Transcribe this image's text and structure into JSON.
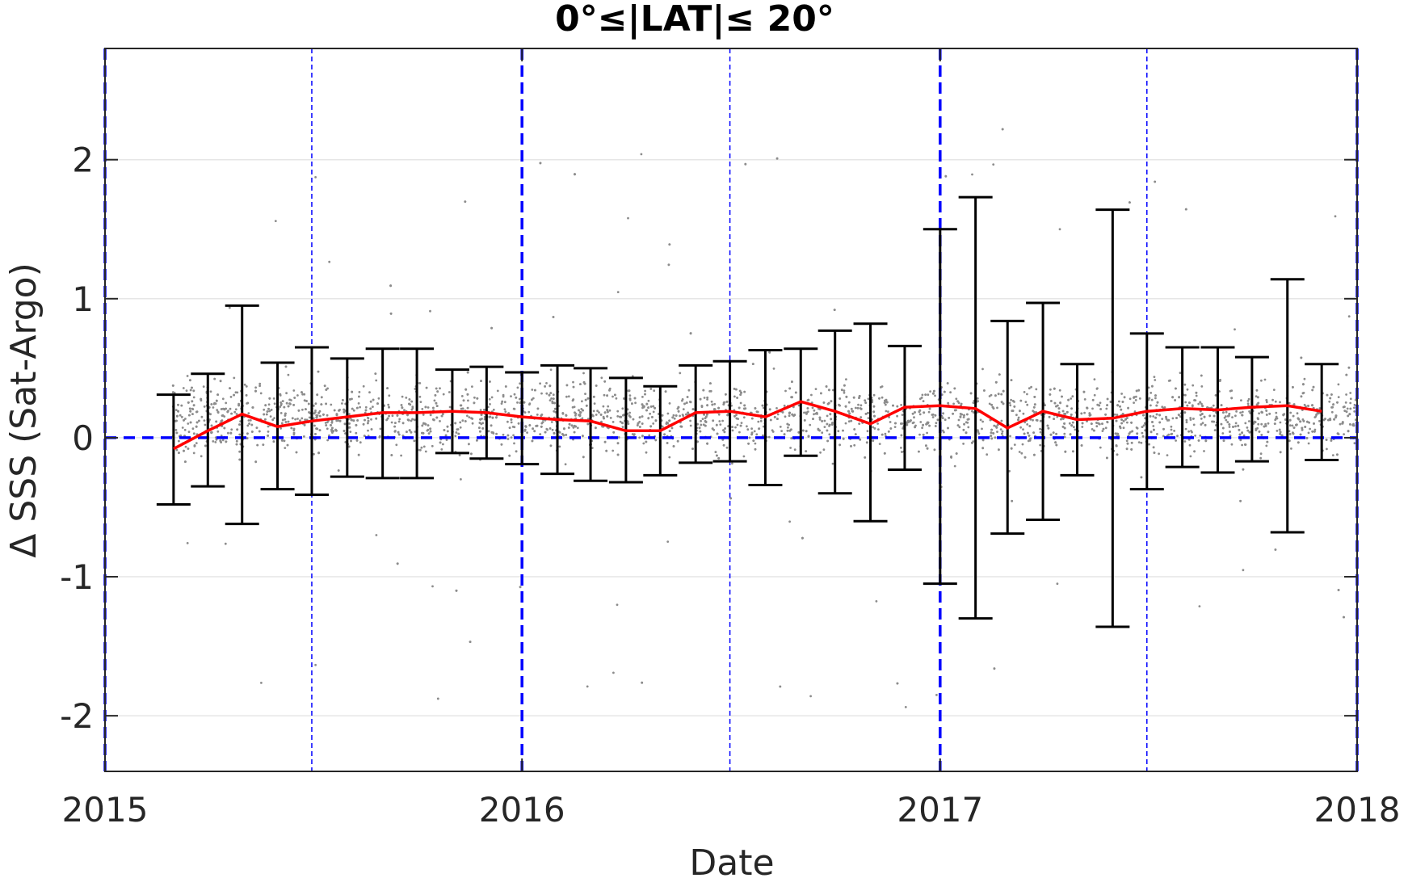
{
  "chart_data": {
    "type": "scatter",
    "title": "0°≤|LAT|≤ 20°",
    "xlabel": "Date",
    "ylabel": "Δ SSS (Sat-Argo)",
    "xlim": [
      "2015-01-01",
      "2018-01-01"
    ],
    "ylim": [
      -2.4,
      2.8
    ],
    "grid": true,
    "x_tick_labels": [
      "2015",
      "2016",
      "2017",
      "2018"
    ],
    "y_ticks": [
      -2,
      -1,
      0,
      1,
      2
    ],
    "y_tick_labels": [
      "-2",
      "-1",
      "0",
      "1",
      "2"
    ],
    "reference_lines": {
      "year_boundaries": [
        "2015-01-01",
        "2016-01-01",
        "2017-01-01",
        "2018-01-01"
      ],
      "mid_year": [
        "2015-07-01",
        "2016-07-01",
        "2017-07-01"
      ],
      "zero_line": 0,
      "color": "#0000ff"
    },
    "colors": {
      "points": "#8c8c8c",
      "mean": "#ff0000",
      "errorbars": "#000000",
      "reference": "#0000ff"
    },
    "scatter_note_value": null,
    "series": [
      {
        "kind": "scatter",
        "description_only_from_render": true,
        "x_range": [
          "2015-03-01",
          "2018-01-01"
        ],
        "y_center": 0.15,
        "y_spread": 0.25
      },
      {
        "kind": "errorbar",
        "x": [
          "2015-03-02",
          "2015-04-01",
          "2015-05-01",
          "2015-06-01",
          "2015-07-01",
          "2015-08-01",
          "2015-09-01",
          "2015-10-01",
          "2015-11-01",
          "2015-12-01",
          "2016-01-01",
          "2016-02-01",
          "2016-03-01",
          "2016-04-01",
          "2016-05-01",
          "2016-06-01",
          "2016-07-01",
          "2016-08-01",
          "2016-09-01",
          "2016-10-01",
          "2016-11-01",
          "2016-12-01",
          "2017-01-01",
          "2017-02-01",
          "2017-03-01",
          "2017-04-01",
          "2017-05-01",
          "2017-06-01",
          "2017-07-01",
          "2017-08-01",
          "2017-09-01",
          "2017-10-01",
          "2017-11-01",
          "2017-12-01"
        ],
        "y": [
          -0.08,
          0.05,
          0.17,
          0.08,
          0.12,
          0.15,
          0.18,
          0.18,
          0.19,
          0.18,
          0.15,
          0.13,
          0.12,
          0.05,
          0.05,
          0.18,
          0.19,
          0.15,
          0.26,
          0.19,
          0.1,
          0.22,
          0.23,
          0.21,
          0.07,
          0.19,
          0.13,
          0.14,
          0.19,
          0.21,
          0.2,
          0.22,
          0.23,
          0.19
        ],
        "upper": [
          0.31,
          0.46,
          0.95,
          0.54,
          0.65,
          0.57,
          0.64,
          0.64,
          0.49,
          0.51,
          0.47,
          0.52,
          0.5,
          0.43,
          0.37,
          0.52,
          0.55,
          0.63,
          0.64,
          0.77,
          0.82,
          0.66,
          1.5,
          1.73,
          0.84,
          0.97,
          0.53,
          1.64,
          0.75,
          0.65,
          0.65,
          0.58,
          1.14,
          0.53
        ],
        "lower": [
          -0.48,
          -0.35,
          -0.62,
          -0.37,
          -0.41,
          -0.28,
          -0.29,
          -0.29,
          -0.11,
          -0.15,
          -0.19,
          -0.26,
          -0.31,
          -0.32,
          -0.27,
          -0.18,
          -0.17,
          -0.34,
          -0.13,
          -0.4,
          -0.6,
          -0.23,
          -1.05,
          -1.3,
          -0.69,
          -0.59,
          -0.27,
          -1.36,
          -0.37,
          -0.21,
          -0.25,
          -0.17,
          -0.68,
          -0.16
        ]
      }
    ]
  }
}
